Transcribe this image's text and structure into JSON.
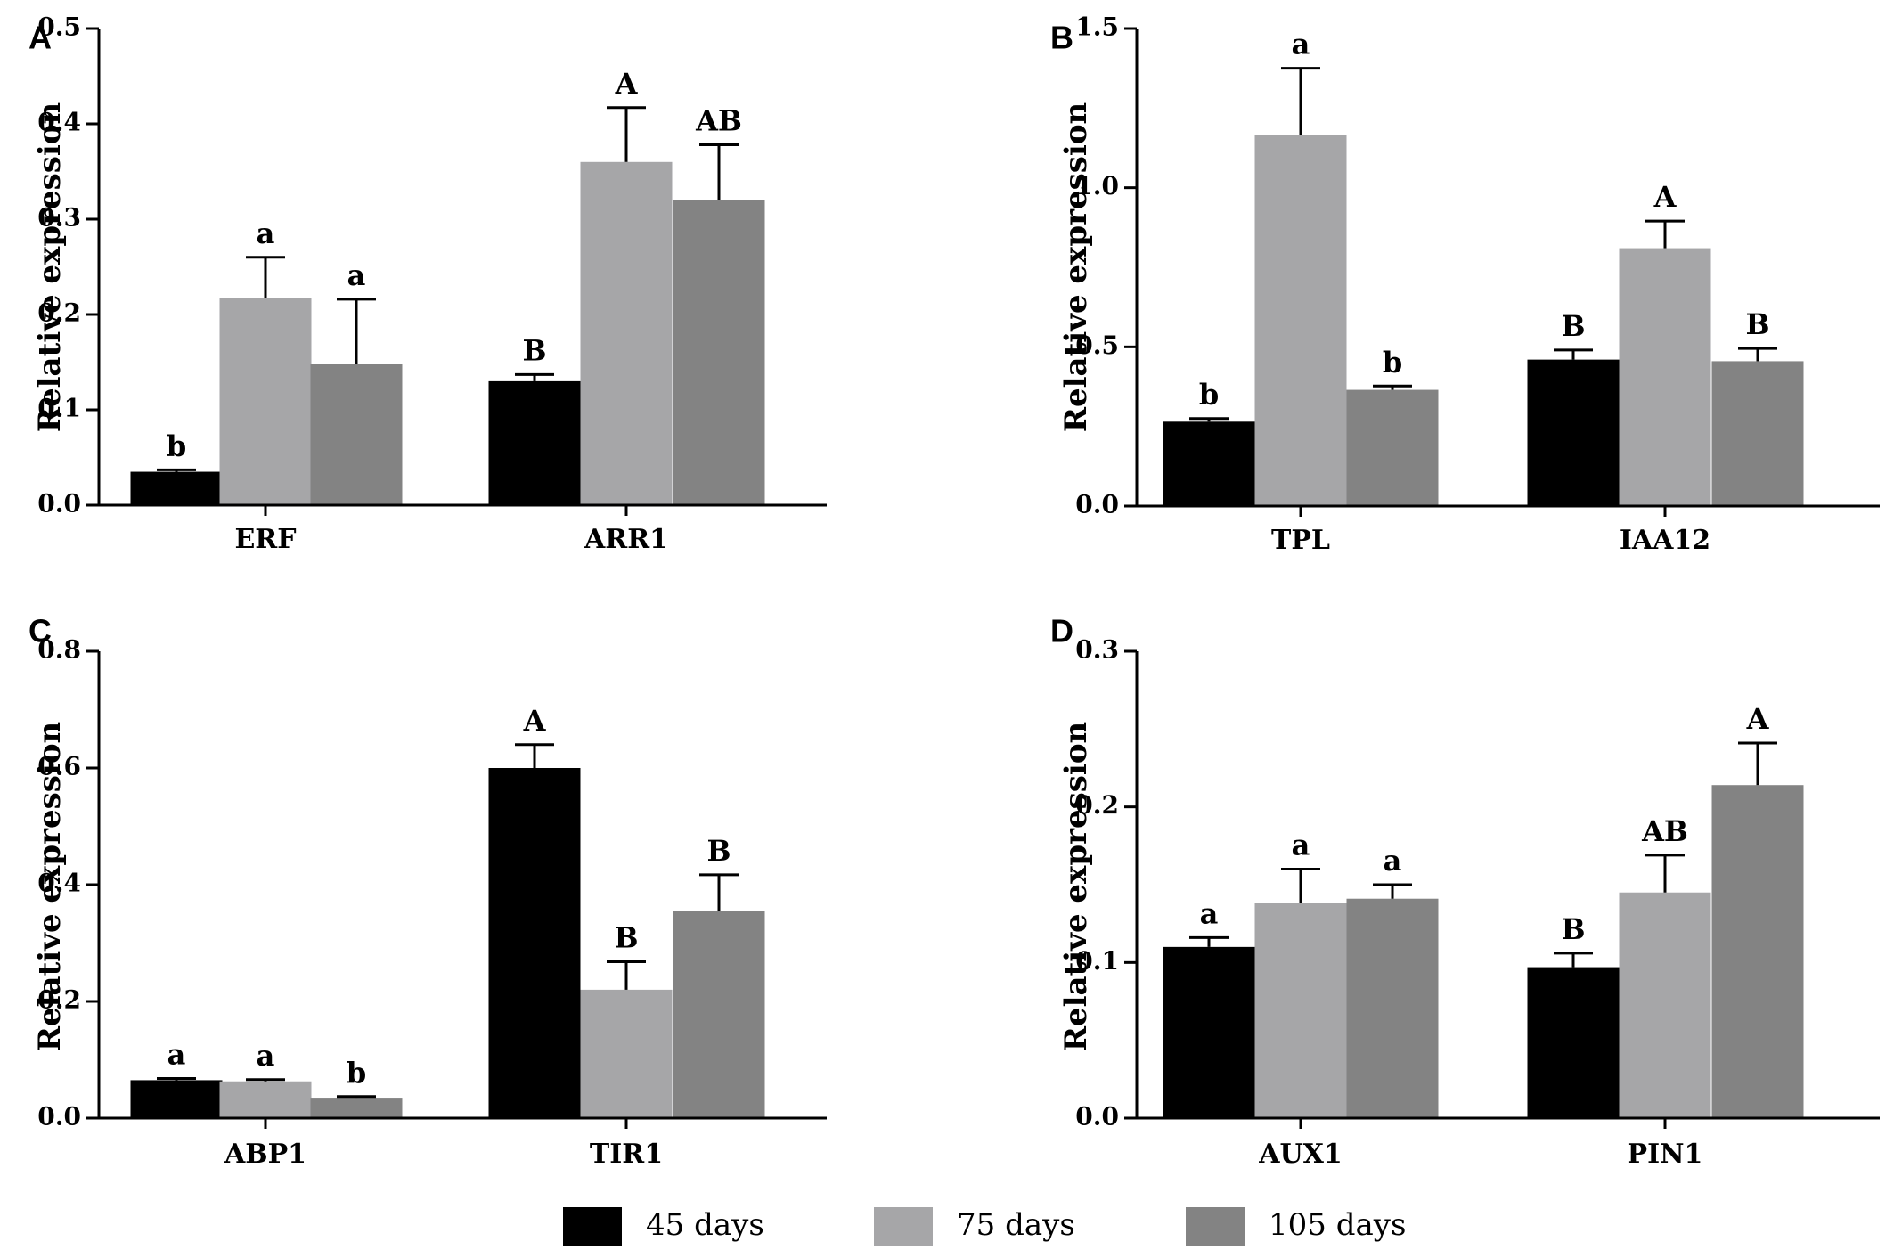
{
  "chart_data": [
    {
      "panel": "A",
      "type": "bar",
      "ylabel": "Relative expression",
      "ylim": [
        0,
        0.5
      ],
      "yticks": [
        "0.0",
        "0.1",
        "0.2",
        "0.3",
        "0.4",
        "0.5"
      ],
      "categories": [
        "ERF",
        "ARR1"
      ],
      "series": [
        {
          "name": "45 days",
          "values": [
            0.035,
            0.13
          ],
          "errors": [
            0.002,
            0.007
          ]
        },
        {
          "name": "75 days",
          "values": [
            0.217,
            0.36
          ],
          "errors": [
            0.043,
            0.057
          ]
        },
        {
          "name": "105 days",
          "values": [
            0.148,
            0.32
          ],
          "errors": [
            0.068,
            0.058
          ]
        }
      ],
      "letters": [
        [
          "b",
          "a",
          "a"
        ],
        [
          "B",
          "A",
          "AB"
        ]
      ]
    },
    {
      "panel": "B",
      "type": "bar",
      "ylabel": "Relative expression",
      "ylim": [
        0,
        1.5
      ],
      "yticks": [
        "0.0",
        "0.5",
        "1.0",
        "1.5"
      ],
      "categories": [
        "TPL",
        "IAA12"
      ],
      "series": [
        {
          "name": "45 days",
          "values": [
            0.265,
            0.46
          ],
          "errors": [
            0.01,
            0.03
          ]
        },
        {
          "name": "75 days",
          "values": [
            1.165,
            0.81
          ],
          "errors": [
            0.21,
            0.085
          ]
        },
        {
          "name": "105 days",
          "values": [
            0.365,
            0.455
          ],
          "errors": [
            0.012,
            0.04
          ]
        }
      ],
      "letters": [
        [
          "b",
          "a",
          "b"
        ],
        [
          "B",
          "A",
          "B"
        ]
      ]
    },
    {
      "panel": "C",
      "type": "bar",
      "ylabel": "Relative expression",
      "ylim": [
        0,
        0.8
      ],
      "yticks": [
        "0.0",
        "0.2",
        "0.4",
        "0.6",
        "0.8"
      ],
      "categories": [
        "ABP1",
        "TIR1"
      ],
      "series": [
        {
          "name": "45 days",
          "values": [
            0.065,
            0.6
          ],
          "errors": [
            0.003,
            0.04
          ]
        },
        {
          "name": "75 days",
          "values": [
            0.063,
            0.22
          ],
          "errors": [
            0.003,
            0.048
          ]
        },
        {
          "name": "105 days",
          "values": [
            0.035,
            0.355
          ],
          "errors": [
            0.002,
            0.062
          ]
        }
      ],
      "letters": [
        [
          "a",
          "a",
          "b"
        ],
        [
          "A",
          "B",
          "B"
        ]
      ]
    },
    {
      "panel": "D",
      "type": "bar",
      "ylabel": "Relative expression",
      "ylim": [
        0,
        0.3
      ],
      "yticks": [
        "0.0",
        "0.1",
        "0.2",
        "0.3"
      ],
      "categories": [
        "AUX1",
        "PIN1"
      ],
      "series": [
        {
          "name": "45 days",
          "values": [
            0.11,
            0.097
          ],
          "errors": [
            0.006,
            0.009
          ]
        },
        {
          "name": "75 days",
          "values": [
            0.138,
            0.145
          ],
          "errors": [
            0.022,
            0.024
          ]
        },
        {
          "name": "105 days",
          "values": [
            0.141,
            0.214
          ],
          "errors": [
            0.009,
            0.027
          ]
        }
      ],
      "letters": [
        [
          "a",
          "a",
          "a"
        ],
        [
          "B",
          "AB",
          "A"
        ]
      ]
    }
  ],
  "legend": [
    {
      "label": "45 days",
      "color": "#000000"
    },
    {
      "label": "75 days",
      "color": "#a6a6a8"
    },
    {
      "label": "105 days",
      "color": "#838383"
    }
  ],
  "series_colors": [
    "#000000",
    "#a6a6a8",
    "#838383"
  ]
}
